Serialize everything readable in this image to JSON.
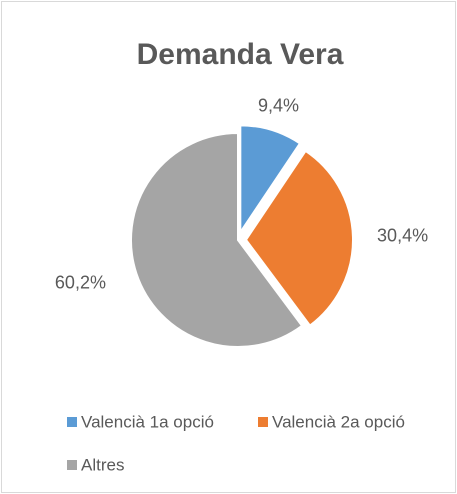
{
  "chart_data": {
    "type": "pie",
    "title": "Demanda Vera",
    "categories": [
      "Valencià 1a opció",
      "Valencià 2a opció",
      "Altres"
    ],
    "values": [
      9.4,
      30.4,
      60.2
    ],
    "value_labels": [
      "9,4%",
      "30,4%",
      "60,2%"
    ],
    "colors": [
      "#5b9bd5",
      "#ed7d31",
      "#a5a5a5"
    ],
    "legend": "bottom"
  }
}
